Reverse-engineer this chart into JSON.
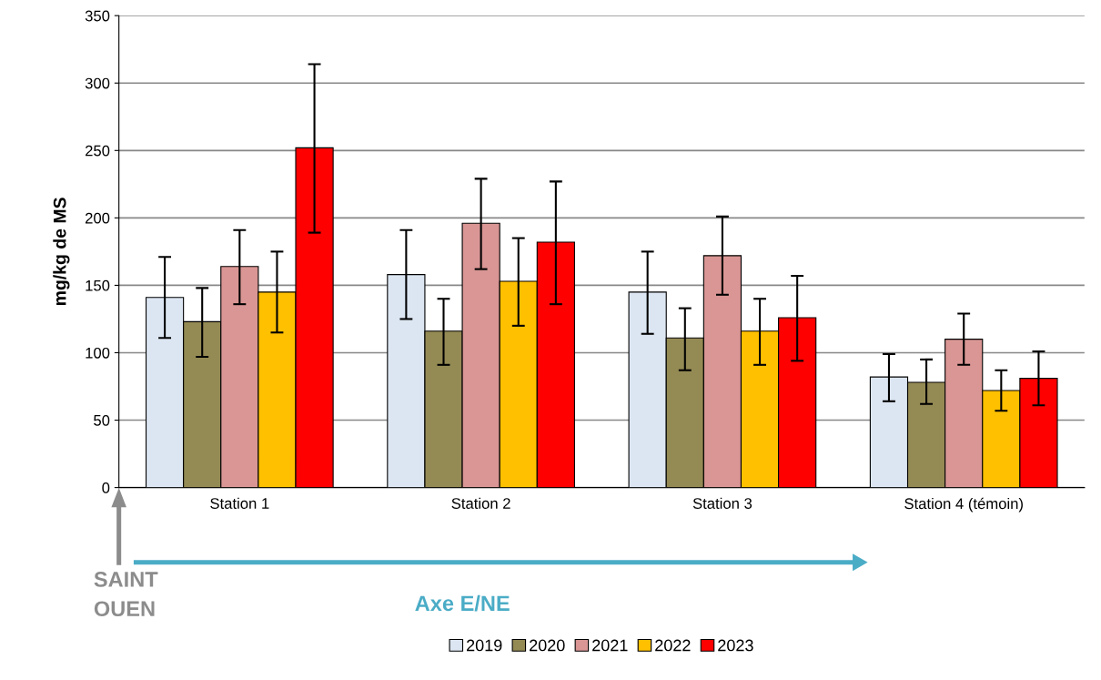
{
  "chart_data": {
    "type": "bar",
    "ylabel": "mg/kg de MS",
    "categories": [
      "Station 1",
      "Station 2",
      "Station 3",
      "Station 4 (témoin)"
    ],
    "series": [
      {
        "name": "2019",
        "color": "#dce6f2",
        "values": [
          141,
          158,
          145,
          82
        ],
        "errors": [
          [
            111,
            171
          ],
          [
            125,
            191
          ],
          [
            114,
            175
          ],
          [
            64,
            99
          ]
        ]
      },
      {
        "name": "2020",
        "color": "#948a54",
        "values": [
          123,
          116,
          111,
          78
        ],
        "errors": [
          [
            97,
            148
          ],
          [
            91,
            140
          ],
          [
            87,
            133
          ],
          [
            62,
            95
          ]
        ]
      },
      {
        "name": "2021",
        "color": "#d99694",
        "values": [
          164,
          196,
          172,
          110
        ],
        "errors": [
          [
            136,
            191
          ],
          [
            162,
            229
          ],
          [
            143,
            201
          ],
          [
            91,
            129
          ]
        ]
      },
      {
        "name": "2022",
        "color": "#ffc000",
        "values": [
          145,
          153,
          116,
          72
        ],
        "errors": [
          [
            115,
            175
          ],
          [
            120,
            185
          ],
          [
            91,
            140
          ],
          [
            57,
            87
          ]
        ]
      },
      {
        "name": "2023",
        "color": "#ff0000",
        "values": [
          252,
          182,
          126,
          81
        ],
        "errors": [
          [
            189,
            314
          ],
          [
            136,
            227
          ],
          [
            94,
            157
          ],
          [
            61,
            101
          ]
        ]
      }
    ],
    "ylim": [
      0,
      350
    ],
    "yticks": [
      0,
      50,
      100,
      150,
      200,
      250,
      300,
      350
    ],
    "grid": "y",
    "legend": "bottom",
    "annotations": [
      "SAINT\nOUEN",
      "Axe E/NE"
    ]
  }
}
